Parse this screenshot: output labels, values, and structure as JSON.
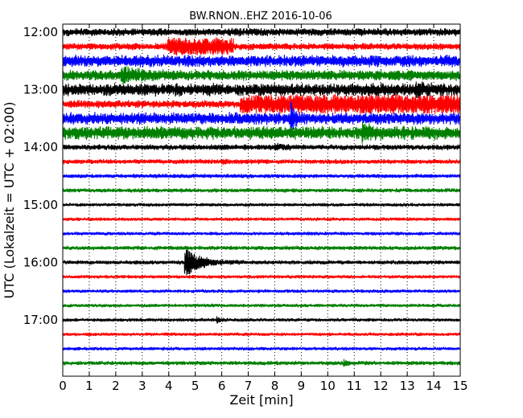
{
  "chart_data": {
    "type": "line",
    "title": "BW.RNON..EHZ 2016-10-06",
    "xlabel": "Zeit  [min]",
    "ylabel": "UTC (Lokalzeit = UTC + 02:00)",
    "xlim": [
      0,
      15
    ],
    "x_ticks": [
      "0",
      "1",
      "2",
      "3",
      "4",
      "5",
      "6",
      "7",
      "8",
      "9",
      "10",
      "11",
      "12",
      "13",
      "14",
      "15"
    ],
    "y_ticks": [
      "12:00",
      "13:00",
      "14:00",
      "15:00",
      "16:00",
      "17:00"
    ],
    "grid": "vertical dotted at each minute",
    "colors": [
      "#000000",
      "#ff0000",
      "#0000ff",
      "#007f00"
    ],
    "traces": [
      {
        "start": "12:00",
        "color": "#000000",
        "noise": 0.55,
        "events": []
      },
      {
        "start": "12:15",
        "color": "#ff0000",
        "noise": 0.5,
        "events": [
          {
            "t": 3.95,
            "amp": 1.1,
            "dur": 2.5,
            "step": 0.9
          }
        ]
      },
      {
        "start": "12:30",
        "color": "#0000ff",
        "noise": 0.85,
        "events": []
      },
      {
        "start": "12:45",
        "color": "#007f00",
        "noise": 0.75,
        "events": [
          {
            "t": 2.2,
            "amp": 0.8,
            "dur": 1.6
          }
        ]
      },
      {
        "start": "13:00",
        "color": "#000000",
        "noise": 0.9,
        "events": [
          {
            "t": 13.3,
            "amp": 0.9,
            "dur": 0.6
          }
        ]
      },
      {
        "start": "13:15",
        "color": "#ff0000",
        "noise": 0.55,
        "events": [
          {
            "t": 6.7,
            "amp": 1.1,
            "dur": 8.3,
            "step": 1.0
          }
        ]
      },
      {
        "start": "13:30",
        "color": "#0000ff",
        "noise": 0.85,
        "events": [
          {
            "t": 8.6,
            "amp": 2.4,
            "dur": 0.3
          }
        ]
      },
      {
        "start": "13:45",
        "color": "#007f00",
        "noise": 0.95,
        "events": [
          {
            "t": 11.3,
            "amp": 1.3,
            "dur": 0.5
          }
        ]
      },
      {
        "start": "14:00",
        "color": "#000000",
        "noise": 0.4,
        "events": [
          {
            "t": 8.0,
            "amp": 0.5,
            "dur": 0.7
          }
        ]
      },
      {
        "start": "14:15",
        "color": "#ff0000",
        "noise": 0.35,
        "events": [
          {
            "t": 6.0,
            "amp": 0.4,
            "dur": 0.3
          }
        ]
      },
      {
        "start": "14:30",
        "color": "#0000ff",
        "noise": 0.3,
        "events": []
      },
      {
        "start": "14:45",
        "color": "#007f00",
        "noise": 0.3,
        "events": []
      },
      {
        "start": "15:00",
        "color": "#000000",
        "noise": 0.25,
        "events": []
      },
      {
        "start": "15:15",
        "color": "#ff0000",
        "noise": 0.25,
        "events": []
      },
      {
        "start": "15:30",
        "color": "#0000ff",
        "noise": 0.25,
        "events": []
      },
      {
        "start": "15:45",
        "color": "#007f00",
        "noise": 0.3,
        "events": []
      },
      {
        "start": "16:00",
        "color": "#000000",
        "noise": 0.3,
        "events": [
          {
            "t": 4.6,
            "amp": 2.2,
            "dur": 1.4
          }
        ]
      },
      {
        "start": "16:15",
        "color": "#ff0000",
        "noise": 0.25,
        "events": []
      },
      {
        "start": "16:30",
        "color": "#0000ff",
        "noise": 0.25,
        "events": []
      },
      {
        "start": "16:45",
        "color": "#007f00",
        "noise": 0.25,
        "events": []
      },
      {
        "start": "17:00",
        "color": "#000000",
        "noise": 0.25,
        "events": [
          {
            "t": 5.8,
            "amp": 0.5,
            "dur": 0.3
          }
        ]
      },
      {
        "start": "17:15",
        "color": "#ff0000",
        "noise": 0.25,
        "events": []
      },
      {
        "start": "17:30",
        "color": "#0000ff",
        "noise": 0.25,
        "events": []
      },
      {
        "start": "17:45",
        "color": "#007f00",
        "noise": 0.3,
        "events": [
          {
            "t": 10.6,
            "amp": 0.4,
            "dur": 0.4
          }
        ]
      }
    ]
  }
}
